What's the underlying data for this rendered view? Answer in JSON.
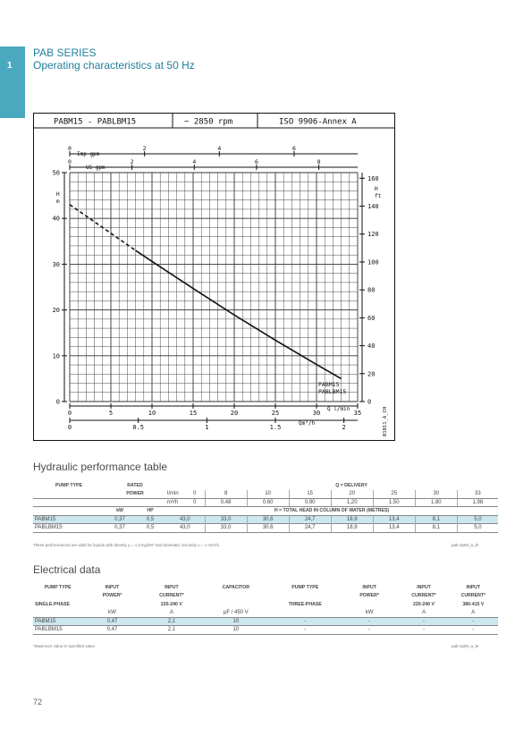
{
  "header": {
    "chapter": "1",
    "series": "PAB SERIES",
    "subtitle": "Operating characteristics at 50 Hz"
  },
  "chart": {
    "title_model": "PABM15 - PABLBM15",
    "title_speed": "~ 2850 rpm",
    "title_standard": "ISO 9906-Annex A",
    "imp_gpm_label": "Imp gpm",
    "us_gpm_label": "US gpm",
    "h_m_label_1": "H",
    "h_m_label_2": "m",
    "h_ft_label_1": "H",
    "h_ft_label_2": "ft",
    "q_lmin_label": "Q l/min",
    "q_m3h_label": "Qm³/h",
    "curve_label_1": "PABM15",
    "curve_label_2": "PABLBM15",
    "ref_code": "01011_A_CH"
  },
  "chart_data": {
    "type": "line",
    "xlabel": "Q l/min",
    "ylabel": "H m",
    "xlim": [
      0,
      35
    ],
    "ylim": [
      0,
      50
    ],
    "x_ticks": [
      0,
      5,
      10,
      15,
      20,
      25,
      30,
      35
    ],
    "y_ticks": [
      0,
      10,
      20,
      30,
      40,
      50
    ],
    "ft_ticks": [
      0,
      20,
      40,
      60,
      80,
      100,
      120,
      140,
      160
    ],
    "m3h_ticks": [
      "0",
      "0.5",
      "1",
      "1.5",
      "2"
    ],
    "m3h_values": [
      0,
      0.5,
      1,
      1.5,
      2
    ],
    "us_gpm_ticks": [
      "0",
      "2",
      "4",
      "6",
      "8"
    ],
    "us_gpm_values": [
      0,
      2,
      4,
      6,
      8
    ],
    "imp_gpm_ticks": [
      "0",
      "2",
      "4",
      "6"
    ],
    "imp_gpm_values": [
      0,
      2,
      4,
      6
    ],
    "grid": true,
    "series": [
      {
        "name": "PABM15 - PABLBM15",
        "dashed_x": [
          0,
          8
        ],
        "x": [
          0,
          8,
          10,
          15,
          20,
          25,
          30,
          33
        ],
        "y": [
          43,
          33,
          30.6,
          24.7,
          18.9,
          13.4,
          8.1,
          5
        ]
      }
    ]
  },
  "hydraulic": {
    "title": "Hydraulic performance table",
    "pump_type": "PUMP TYPE",
    "rated": "RATED",
    "power": "POWER",
    "q_header": "Q = DELIVERY",
    "unit_lmin": "l/min",
    "unit_m3h": "m³/h",
    "kw": "kW",
    "hp": "HP",
    "h_header": "H = TOTAL HEAD IN COLUMN OF WATER (METRES)",
    "lmin": [
      "0",
      "8",
      "10",
      "15",
      "20",
      "25",
      "30",
      "33"
    ],
    "m3h": [
      "0",
      "0,48",
      "0,60",
      "0,90",
      "1,20",
      "1,50",
      "1,80",
      "1,98"
    ],
    "rows": [
      {
        "type": "PABM15",
        "kw": "0,37",
        "hp": "0,5",
        "h": [
          "43,0",
          "33,0",
          "30,6",
          "24,7",
          "18,9",
          "13,4",
          "8,1",
          "5,0"
        ]
      },
      {
        "type": "PABLBM15",
        "kw": "0,37",
        "hp": "0,5",
        "h": [
          "43,0",
          "33,0",
          "30,6",
          "24,7",
          "18,9",
          "13,4",
          "8,1",
          "5,0"
        ]
      }
    ],
    "note": "These performances are valid for liquids with density ρ = 1.0 Kg/dm³ and kinematic viscosity ν = 1 mm²/s.",
    "code": "pab-2p50_a_th"
  },
  "electrical": {
    "title": "Electrical data",
    "pump_type_1": "PUMP TYPE",
    "single_phase": "SINGLE-PHASE",
    "input": "INPUT",
    "power": "POWER*",
    "current": "CURRENT*",
    "v220": "220-240 V",
    "capacitor": "CAPACITOR",
    "pump_type_2": "PUMP TYPE",
    "three_phase": "THREE-PHASE",
    "v380": "380-415 V",
    "kw": "kW",
    "a": "A",
    "uf": "µF / 450 V",
    "rows": [
      {
        "type": "PABM15",
        "kw": "0,47",
        "a": "2,1",
        "uf": "10",
        "t_type": "-",
        "t_kw": "-",
        "t_a1": "-",
        "t_a2": "-"
      },
      {
        "type": "PABLBM15",
        "kw": "0,47",
        "a": "2,1",
        "uf": "10",
        "t_type": "-",
        "t_kw": "-",
        "t_a1": "-",
        "t_a2": "-"
      }
    ],
    "note": "*Maximum value in specified value",
    "code": "pab-2p50_a_te"
  },
  "footer": {
    "page": "72"
  }
}
